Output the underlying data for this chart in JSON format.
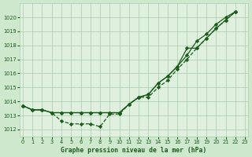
{
  "title": "Graphe pression niveau de la mer (hPa)",
  "background_color": "#cde8cd",
  "plot_bg_color": "#dff0df",
  "grid_color": "#aaccaa",
  "line_color": "#1a5c1a",
  "xlim": [
    -0.3,
    23.3
  ],
  "ylim": [
    1011.5,
    1021.0
  ],
  "yticks": [
    1012,
    1013,
    1014,
    1015,
    1016,
    1017,
    1018,
    1019,
    1020
  ],
  "xticks": [
    0,
    1,
    2,
    3,
    4,
    5,
    6,
    7,
    8,
    9,
    10,
    11,
    12,
    13,
    14,
    15,
    16,
    17,
    18,
    19,
    20,
    21,
    22,
    23
  ],
  "x": [
    0,
    1,
    2,
    3,
    4,
    5,
    6,
    7,
    8,
    9,
    10,
    11,
    12,
    13,
    14,
    15,
    16,
    17,
    18,
    19,
    20,
    21,
    22
  ],
  "y_dot": [
    1013.7,
    1013.4,
    1013.4,
    1013.2,
    1012.6,
    1012.4,
    1012.4,
    1012.4,
    1012.2,
    1013.1,
    1013.1,
    1013.8,
    1014.3,
    1014.3,
    1015.0,
    1015.5,
    1016.3,
    1017.0,
    1017.8,
    1018.5,
    1019.2,
    1019.8,
    1020.4
  ],
  "y_line_top": [
    1013.7,
    1013.4,
    1013.4,
    1013.2,
    1013.2,
    1013.2,
    1013.2,
    1013.2,
    1013.2,
    1013.2,
    1013.2,
    1013.8,
    1014.3,
    1014.5,
    1015.3,
    1015.8,
    1016.5,
    1017.3,
    1018.3,
    1018.8,
    1019.5,
    1020.0,
    1020.4
  ],
  "y_line_mid": [
    1013.7,
    1013.4,
    1013.4,
    1013.2,
    1013.2,
    1013.2,
    1013.2,
    1013.2,
    1013.2,
    1013.2,
    1013.2,
    1013.8,
    1014.3,
    1014.5,
    1015.3,
    1015.8,
    1016.5,
    1017.8,
    1017.8,
    1018.5,
    1019.2,
    1019.8,
    1020.4
  ]
}
